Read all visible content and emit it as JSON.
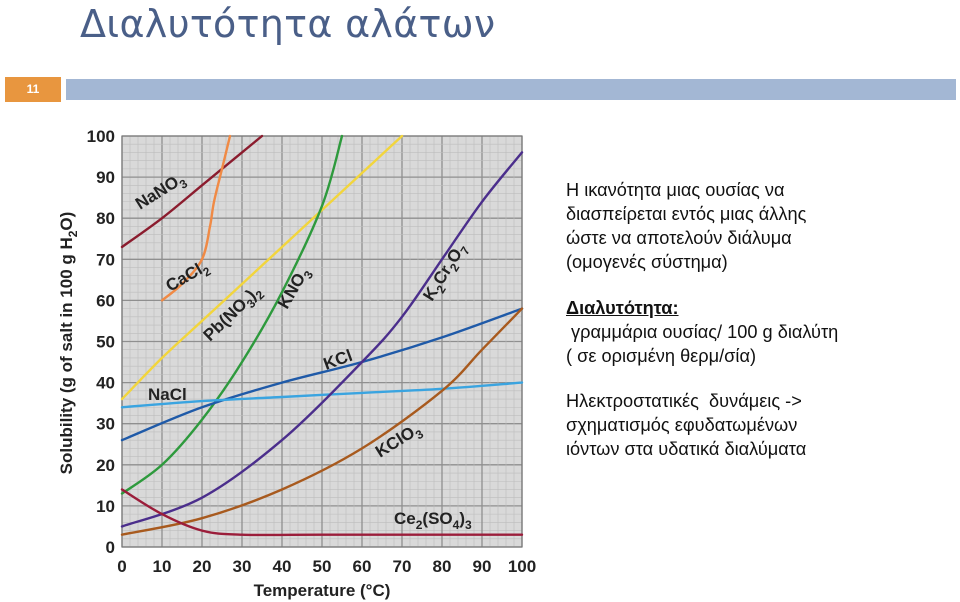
{
  "slide": {
    "title": "Διαλυτότητα αλάτων",
    "number": "11",
    "accent_color": "#e8963f",
    "band_color": "#a3b7d4",
    "title_color": "#4a5f88"
  },
  "text": {
    "intro": [
      "Η ικανότητα μιας ουσίας να",
      "διασπείρεται εντός μιας άλλης",
      "ώστε να αποτελούν διάλυμα",
      "(ομογενές σύστημα)"
    ],
    "definition_heading": "Διαλυτότητα:",
    "definition": [
      " γραμμάρια ουσίας/ 100 g διαλύτη",
      "( σε ορισμένη θερμ/σία)"
    ],
    "forces": [
      "Ηλεκτροστατικές  δυνάμεις ->",
      "σχηματισμός εφυδατωμένων",
      "ιόντων στα υδατικά διαλύματα"
    ]
  },
  "chart_data": {
    "type": "line",
    "xlabel": "Temperature (°C)",
    "ylabel": "Solubility (g of salt in 100 g H₂O)",
    "xlim": [
      0,
      100
    ],
    "ylim": [
      0,
      100
    ],
    "x_ticks": [
      "0",
      "10",
      "20",
      "30",
      "40",
      "50",
      "60",
      "70",
      "80",
      "90",
      "100"
    ],
    "y_ticks": [
      "0",
      "10",
      "20",
      "30",
      "40",
      "50",
      "60",
      "70",
      "80",
      "90",
      "100"
    ],
    "grid": true,
    "series": [
      {
        "name": "NaNO3",
        "color": "#8b1c2e",
        "points": [
          [
            0,
            73
          ],
          [
            10,
            80
          ],
          [
            20,
            88
          ],
          [
            30,
            96
          ],
          [
            35,
            100
          ]
        ]
      },
      {
        "name": "CaCl2",
        "color": "#f08a45",
        "points": [
          [
            10,
            60
          ],
          [
            15,
            64
          ],
          [
            20,
            70
          ],
          [
            22,
            78
          ],
          [
            23,
            84
          ],
          [
            25,
            92
          ],
          [
            27,
            100
          ]
        ]
      },
      {
        "name": "Pb(NO3)2",
        "color": "#f2d53c",
        "points": [
          [
            0,
            36
          ],
          [
            10,
            46
          ],
          [
            20,
            55
          ],
          [
            30,
            64
          ],
          [
            40,
            73
          ],
          [
            50,
            82
          ],
          [
            60,
            91
          ],
          [
            70,
            100
          ]
        ]
      },
      {
        "name": "KNO3",
        "color": "#2e9a3d",
        "points": [
          [
            0,
            13
          ],
          [
            10,
            20
          ],
          [
            20,
            31
          ],
          [
            30,
            45
          ],
          [
            40,
            62
          ],
          [
            50,
            83
          ],
          [
            55,
            100
          ]
        ]
      },
      {
        "name": "KCl",
        "color": "#1f5aa8",
        "points": [
          [
            0,
            26
          ],
          [
            20,
            34
          ],
          [
            40,
            40
          ],
          [
            60,
            45
          ],
          [
            80,
            51
          ],
          [
            100,
            58
          ]
        ]
      },
      {
        "name": "NaCl",
        "color": "#3aa4e0",
        "points": [
          [
            0,
            34
          ],
          [
            20,
            35.5
          ],
          [
            40,
            36.5
          ],
          [
            60,
            37.5
          ],
          [
            80,
            38.5
          ],
          [
            100,
            40
          ]
        ]
      },
      {
        "name": "K2Cr2O7",
        "color": "#4b2e8c",
        "points": [
          [
            0,
            5
          ],
          [
            20,
            12
          ],
          [
            40,
            26
          ],
          [
            60,
            45
          ],
          [
            70,
            56
          ],
          [
            80,
            70
          ],
          [
            90,
            84
          ],
          [
            100,
            96
          ]
        ]
      },
      {
        "name": "KClO3",
        "color": "#a85a1e",
        "points": [
          [
            0,
            3
          ],
          [
            20,
            7
          ],
          [
            40,
            14
          ],
          [
            60,
            24
          ],
          [
            80,
            38
          ],
          [
            90,
            48
          ],
          [
            100,
            58
          ]
        ]
      },
      {
        "name": "Ce2(SO4)3",
        "color": "#9b1d3a",
        "points": [
          [
            0,
            14
          ],
          [
            10,
            8
          ],
          [
            20,
            4
          ],
          [
            30,
            3
          ],
          [
            50,
            3
          ],
          [
            100,
            3
          ]
        ]
      }
    ],
    "annotations": {
      "NaNO3": "NaNO3",
      "CaCl2": "CaCl2",
      "PbNO32": "Pb(NO3)2",
      "KNO3": "KNO3",
      "KCl": "KCl",
      "NaCl": "NaCl",
      "K2Cr2O7": "K2Cr2O7",
      "KClO3": "KClO3",
      "Ce2SO43": "Ce2(SO4)3"
    }
  }
}
